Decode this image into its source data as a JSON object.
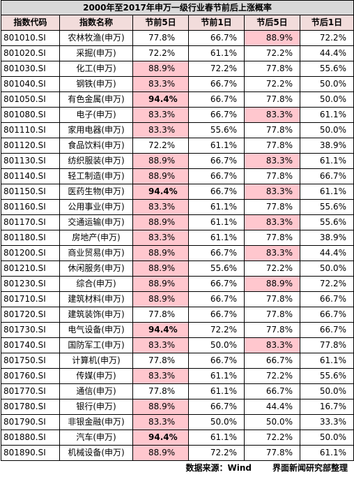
{
  "title": "2000年至2017年申万一级行业春节前后上涨概率",
  "columns": [
    "指数代码",
    "指数名称",
    "节前5日",
    "节前1日",
    "节后5日",
    "节后1日"
  ],
  "rows": [
    {
      "code": "801010.SI",
      "name": "农林牧渔(申万)",
      "v": [
        "77.8%",
        "66.7%",
        "88.9%",
        "72.2%"
      ],
      "hl": [
        false,
        false,
        true,
        false
      ],
      "b": [
        false,
        false,
        false,
        false
      ]
    },
    {
      "code": "801020.SI",
      "name": "采掘(申万)",
      "v": [
        "72.2%",
        "61.1%",
        "72.2%",
        "44.4%"
      ],
      "hl": [
        false,
        false,
        false,
        false
      ],
      "b": [
        false,
        false,
        false,
        false
      ]
    },
    {
      "code": "801030.SI",
      "name": "化工(申万)",
      "v": [
        "88.9%",
        "72.2%",
        "77.8%",
        "55.6%"
      ],
      "hl": [
        true,
        false,
        false,
        false
      ],
      "b": [
        false,
        false,
        false,
        false
      ]
    },
    {
      "code": "801040.SI",
      "name": "钢铁(申万)",
      "v": [
        "83.3%",
        "66.7%",
        "72.2%",
        "50.0%"
      ],
      "hl": [
        true,
        false,
        false,
        false
      ],
      "b": [
        false,
        false,
        false,
        false
      ]
    },
    {
      "code": "801050.SI",
      "name": "有色金属(申万)",
      "v": [
        "94.4%",
        "66.7%",
        "77.8%",
        "50.0%"
      ],
      "hl": [
        true,
        false,
        false,
        false
      ],
      "b": [
        true,
        false,
        false,
        false
      ]
    },
    {
      "code": "801080.SI",
      "name": "电子(申万)",
      "v": [
        "83.3%",
        "66.7%",
        "83.3%",
        "61.1%"
      ],
      "hl": [
        true,
        false,
        true,
        false
      ],
      "b": [
        false,
        false,
        false,
        false
      ]
    },
    {
      "code": "801110.SI",
      "name": "家用电器(申万)",
      "v": [
        "83.3%",
        "55.6%",
        "77.8%",
        "50.0%"
      ],
      "hl": [
        true,
        false,
        false,
        false
      ],
      "b": [
        false,
        false,
        false,
        false
      ]
    },
    {
      "code": "801120.SI",
      "name": "食品饮料(申万)",
      "v": [
        "72.2%",
        "61.1%",
        "77.8%",
        "38.9%"
      ],
      "hl": [
        false,
        false,
        false,
        false
      ],
      "b": [
        false,
        false,
        false,
        false
      ]
    },
    {
      "code": "801130.SI",
      "name": "纺织服装(申万)",
      "v": [
        "88.9%",
        "66.7%",
        "83.3%",
        "61.1%"
      ],
      "hl": [
        true,
        false,
        true,
        false
      ],
      "b": [
        false,
        false,
        false,
        false
      ]
    },
    {
      "code": "801140.SI",
      "name": "轻工制造(申万)",
      "v": [
        "88.9%",
        "66.7%",
        "77.8%",
        "66.7%"
      ],
      "hl": [
        true,
        false,
        false,
        false
      ],
      "b": [
        false,
        false,
        false,
        false
      ]
    },
    {
      "code": "801150.SI",
      "name": "医药生物(申万)",
      "v": [
        "94.4%",
        "66.7%",
        "83.3%",
        "61.1%"
      ],
      "hl": [
        true,
        false,
        true,
        false
      ],
      "b": [
        true,
        false,
        false,
        false
      ]
    },
    {
      "code": "801160.SI",
      "name": "公用事业(申万)",
      "v": [
        "83.3%",
        "61.1%",
        "77.8%",
        "55.6%"
      ],
      "hl": [
        true,
        false,
        false,
        false
      ],
      "b": [
        false,
        false,
        false,
        false
      ]
    },
    {
      "code": "801170.SI",
      "name": "交通运输(申万)",
      "v": [
        "88.9%",
        "61.1%",
        "83.3%",
        "55.6%"
      ],
      "hl": [
        true,
        false,
        true,
        false
      ],
      "b": [
        false,
        false,
        false,
        false
      ]
    },
    {
      "code": "801180.SI",
      "name": "房地产(申万)",
      "v": [
        "83.3%",
        "61.1%",
        "77.8%",
        "38.9%"
      ],
      "hl": [
        true,
        false,
        false,
        false
      ],
      "b": [
        false,
        false,
        false,
        false
      ]
    },
    {
      "code": "801200.SI",
      "name": "商业贸易(申万)",
      "v": [
        "88.9%",
        "66.7%",
        "83.3%",
        "44.4%"
      ],
      "hl": [
        true,
        false,
        true,
        false
      ],
      "b": [
        false,
        false,
        false,
        false
      ]
    },
    {
      "code": "801210.SI",
      "name": "休闲服务(申万)",
      "v": [
        "88.9%",
        "55.6%",
        "72.2%",
        "50.0%"
      ],
      "hl": [
        true,
        false,
        false,
        false
      ],
      "b": [
        false,
        false,
        false,
        false
      ]
    },
    {
      "code": "801230.SI",
      "name": "综合(申万)",
      "v": [
        "88.9%",
        "66.7%",
        "88.9%",
        "72.2%"
      ],
      "hl": [
        true,
        false,
        true,
        false
      ],
      "b": [
        false,
        false,
        false,
        false
      ]
    },
    {
      "code": "801710.SI",
      "name": "建筑材料(申万)",
      "v": [
        "88.9%",
        "66.7%",
        "77.8%",
        "66.7%"
      ],
      "hl": [
        true,
        false,
        false,
        false
      ],
      "b": [
        false,
        false,
        false,
        false
      ]
    },
    {
      "code": "801720.SI",
      "name": "建筑装饰(申万)",
      "v": [
        "77.8%",
        "66.7%",
        "77.8%",
        "66.7%"
      ],
      "hl": [
        false,
        false,
        false,
        false
      ],
      "b": [
        false,
        false,
        false,
        false
      ]
    },
    {
      "code": "801730.SI",
      "name": "电气设备(申万)",
      "v": [
        "94.4%",
        "72.2%",
        "77.8%",
        "66.7%"
      ],
      "hl": [
        true,
        false,
        false,
        false
      ],
      "b": [
        true,
        false,
        false,
        false
      ]
    },
    {
      "code": "801740.SI",
      "name": "国防军工(申万)",
      "v": [
        "83.3%",
        "50.0%",
        "83.3%",
        "77.8%"
      ],
      "hl": [
        true,
        false,
        true,
        false
      ],
      "b": [
        false,
        false,
        false,
        false
      ]
    },
    {
      "code": "801750.SI",
      "name": "计算机(申万)",
      "v": [
        "77.8%",
        "66.7%",
        "66.7%",
        "61.1%"
      ],
      "hl": [
        false,
        false,
        false,
        false
      ],
      "b": [
        false,
        false,
        false,
        false
      ]
    },
    {
      "code": "801760.SI",
      "name": "传媒(申万)",
      "v": [
        "83.3%",
        "61.1%",
        "72.2%",
        "55.6%"
      ],
      "hl": [
        true,
        false,
        false,
        false
      ],
      "b": [
        false,
        false,
        false,
        false
      ]
    },
    {
      "code": "801770.SI",
      "name": "通信(申万)",
      "v": [
        "77.8%",
        "61.1%",
        "66.7%",
        "50.0%"
      ],
      "hl": [
        false,
        false,
        false,
        false
      ],
      "b": [
        false,
        false,
        false,
        false
      ]
    },
    {
      "code": "801780.SI",
      "name": "银行(申万)",
      "v": [
        "88.9%",
        "66.7%",
        "44.4%",
        "16.7%"
      ],
      "hl": [
        true,
        false,
        false,
        false
      ],
      "b": [
        false,
        false,
        false,
        false
      ]
    },
    {
      "code": "801790.SI",
      "name": "非银金融(申万)",
      "v": [
        "83.3%",
        "50.0%",
        "50.0%",
        "33.3%"
      ],
      "hl": [
        true,
        false,
        false,
        false
      ],
      "b": [
        false,
        false,
        false,
        false
      ]
    },
    {
      "code": "801880.SI",
      "name": "汽车(申万)",
      "v": [
        "94.4%",
        "61.1%",
        "72.2%",
        "50.0%"
      ],
      "hl": [
        true,
        false,
        false,
        false
      ],
      "b": [
        true,
        false,
        false,
        false
      ]
    },
    {
      "code": "801890.SI",
      "name": "机械设备(申万)",
      "v": [
        "88.9%",
        "72.2%",
        "77.8%",
        "61.1%"
      ],
      "hl": [
        true,
        false,
        false,
        false
      ],
      "b": [
        false,
        false,
        false,
        false
      ]
    }
  ],
  "footer": {
    "source": "数据来源：Wind",
    "credit": "界面新闻研究部整理"
  },
  "colors": {
    "highlight": "#ffc7ce",
    "header": "#f2dcdb",
    "title_bg": "#d9d9d9"
  }
}
